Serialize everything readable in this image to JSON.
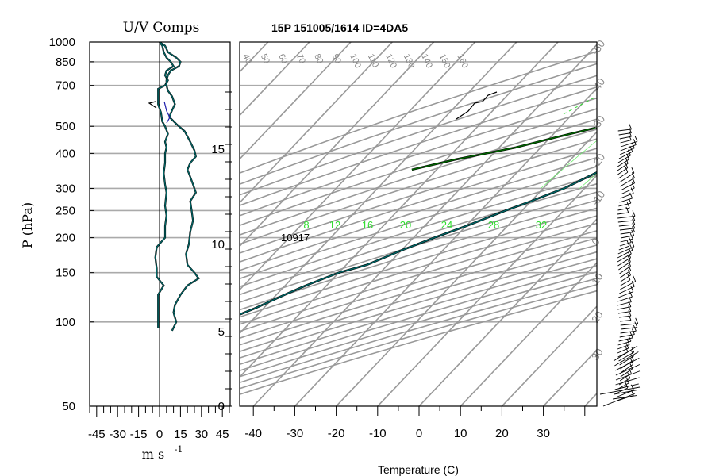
{
  "uv_panel": {
    "title": "U/V Comps",
    "ylabel": "P (hPa)",
    "xunit": "m s",
    "xunit_exp": "-1",
    "pressure_ticks": [
      50,
      100,
      150,
      200,
      250,
      300,
      400,
      500,
      700,
      850,
      1000
    ],
    "x_ticks": [
      "-45",
      "-30",
      "-15",
      "0",
      "15",
      "30",
      "45"
    ]
  },
  "skewt_panel": {
    "title": "15P 151005/1614 ID=4DA5",
    "xlabel": "Temperature (C)",
    "temp_ticks": [
      "-40",
      "-30",
      "-20",
      "-10",
      "0",
      "10",
      "20",
      "30"
    ],
    "height_ticks": [
      "0",
      "5",
      "10",
      "15"
    ],
    "mixing_ratio_labels": [
      "8",
      "12",
      "16",
      "20",
      "24",
      "28",
      "32"
    ],
    "theta_labels": [
      "40",
      "50",
      "60",
      "70",
      "80",
      "90",
      "100",
      "110",
      "120",
      "130",
      "140",
      "150",
      "160"
    ],
    "isotherm_edge_labels": [
      "-50",
      "-40",
      "-30",
      "-20",
      "-10",
      "0",
      "10",
      "20",
      "30"
    ],
    "lcl_label": "10917"
  },
  "chart_data": [
    {
      "type": "line",
      "title": "U/V Comps",
      "ylabel": "P (hPa)",
      "xlabel": "m s -1",
      "xlim": [
        -50,
        50
      ],
      "ylim": [
        1000,
        50
      ],
      "series": [
        {
          "name": "",
          "color": "#006666",
          "points": [
            [
              0,
              1000
            ],
            [
              2,
              970
            ],
            [
              3,
              920
            ],
            [
              5,
              880
            ],
            [
              8,
              850
            ],
            [
              10,
              820
            ],
            [
              5,
              790
            ],
            [
              4,
              760
            ],
            [
              6,
              730
            ],
            [
              4,
              700
            ],
            [
              -1,
              680
            ],
            [
              -1,
              640
            ],
            [
              -1,
              600
            ],
            [
              1,
              560
            ],
            [
              2,
              520
            ],
            [
              4,
              500
            ],
            [
              6,
              470
            ],
            [
              4,
              440
            ],
            [
              5,
              420
            ],
            [
              4,
              400
            ],
            [
              4,
              370
            ],
            [
              3,
              340
            ],
            [
              4,
              310
            ],
            [
              5,
              290
            ],
            [
              4,
              260
            ],
            [
              5,
              240
            ],
            [
              4,
              220
            ],
            [
              4,
              200
            ],
            [
              -2,
              185
            ],
            [
              -3,
              170
            ],
            [
              -2,
              155
            ],
            [
              -2,
              145
            ],
            [
              3,
              135
            ],
            [
              -1,
              125
            ],
            [
              -1,
              115
            ],
            [
              -1,
              105
            ],
            [
              -1,
              95
            ]
          ]
        },
        {
          "name": "",
          "color": "#006666",
          "points": [
            [
              0,
              1000
            ],
            [
              4,
              970
            ],
            [
              6,
              920
            ],
            [
              12,
              880
            ],
            [
              15,
              850
            ],
            [
              14,
              820
            ],
            [
              8,
              790
            ],
            [
              6,
              760
            ],
            [
              5,
              730
            ],
            [
              5,
              700
            ],
            [
              6,
              670
            ],
            [
              9,
              640
            ],
            [
              11,
              600
            ],
            [
              9,
              570
            ],
            [
              7,
              540
            ],
            [
              12,
              510
            ],
            [
              18,
              480
            ],
            [
              22,
              440
            ],
            [
              25,
              410
            ],
            [
              26,
              390
            ],
            [
              22,
              370
            ],
            [
              20,
              350
            ],
            [
              22,
              330
            ],
            [
              24,
              310
            ],
            [
              26,
              290
            ],
            [
              22,
              270
            ],
            [
              23,
              250
            ],
            [
              24,
              230
            ],
            [
              22,
              210
            ],
            [
              21,
              190
            ],
            [
              19,
              175
            ],
            [
              20,
              160
            ],
            [
              25,
              150
            ],
            [
              28,
              143
            ],
            [
              20,
              135
            ],
            [
              15,
              125
            ],
            [
              11,
              115
            ],
            [
              10,
              108
            ],
            [
              12,
              100
            ],
            [
              9,
              93
            ]
          ]
        }
      ]
    },
    {
      "type": "line",
      "title": "15P 151005/1614 ID=4DA5",
      "xlabel": "Temperature (C)",
      "xlim": [
        -40,
        40
      ],
      "ylim": [
        1000,
        50
      ],
      "series": [
        {
          "name": "",
          "color": "#006666",
          "points": [
            [
              24,
              1000
            ],
            [
              22,
              950
            ],
            [
              20,
              900
            ],
            [
              18,
              850
            ],
            [
              15,
              800
            ],
            [
              13,
              750
            ],
            [
              11,
              700
            ],
            [
              9,
              650
            ],
            [
              6,
              600
            ],
            [
              3,
              550
            ],
            [
              0,
              500
            ],
            [
              -3,
              450
            ],
            [
              -6,
              400
            ],
            [
              -10,
              350
            ],
            [
              -15,
              300
            ],
            [
              -20,
              270
            ],
            [
              -24,
              250
            ],
            [
              -30,
              220
            ],
            [
              -35,
              200
            ],
            [
              -40,
              180
            ],
            [
              -45,
              160
            ],
            [
              -50,
              150
            ],
            [
              -55,
              135
            ],
            [
              -58,
              125
            ],
            [
              -62,
              112
            ],
            [
              -67,
              100
            ],
            [
              -70,
              95
            ]
          ]
        },
        {
          "name": "",
          "color": "#006600",
          "points": [
            [
              22,
              1000
            ],
            [
              18,
              970
            ],
            [
              15,
              950
            ],
            [
              10,
              930
            ],
            [
              -2,
              880
            ],
            [
              5,
              860
            ],
            [
              19,
              830
            ],
            [
              12,
              810
            ],
            [
              -5,
              780
            ],
            [
              2,
              760
            ],
            [
              5,
              740
            ],
            [
              -8,
              700
            ],
            [
              -5,
              670
            ],
            [
              0,
              640
            ],
            [
              -5,
              600
            ],
            [
              -12,
              560
            ],
            [
              -16,
              520
            ],
            [
              -22,
              490
            ],
            [
              -28,
              460
            ],
            [
              -36,
              420
            ],
            [
              -48,
              380
            ],
            [
              -56,
              350
            ]
          ]
        }
      ]
    }
  ]
}
